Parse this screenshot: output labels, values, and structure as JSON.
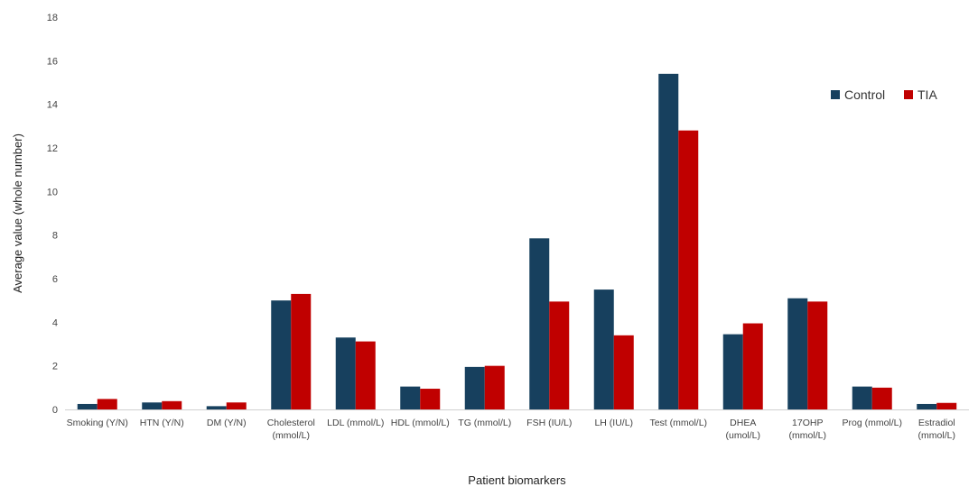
{
  "chart_data": {
    "type": "bar",
    "xlabel": "Patient biomarkers",
    "ylabel": "Average value (whole number)",
    "ylim": [
      0,
      18
    ],
    "yticks": [
      0,
      2,
      4,
      6,
      8,
      10,
      12,
      14,
      16,
      18
    ],
    "grid": false,
    "legend_position": "top-right",
    "categories": [
      [
        "Smoking (Y/N)"
      ],
      [
        "HTN (Y/N)"
      ],
      [
        "DM (Y/N)"
      ],
      [
        "Cholesterol",
        "(mmol/L)"
      ],
      [
        "LDL (mmol/L)"
      ],
      [
        "HDL (mmol/L)"
      ],
      [
        "TG (mmol/L)"
      ],
      [
        "FSH (IU/L)"
      ],
      [
        "LH (IU/L)"
      ],
      [
        "Test (mmol/L)"
      ],
      [
        "DHEA",
        "(umol/L)"
      ],
      [
        "17OHP",
        "(mmol/L)"
      ],
      [
        "Prog (mmol/L)"
      ],
      [
        "Estradiol",
        "(mmol/L)"
      ]
    ],
    "series": [
      {
        "name": "Control",
        "color": "#17405e",
        "values": [
          0.25,
          0.32,
          0.15,
          5.0,
          3.3,
          1.05,
          1.95,
          7.85,
          5.5,
          15.4,
          3.45,
          5.1,
          1.05,
          0.25
        ]
      },
      {
        "name": "TIA",
        "color": "#c00000",
        "values": [
          0.48,
          0.38,
          0.32,
          5.3,
          3.12,
          0.95,
          2.0,
          4.95,
          3.4,
          12.8,
          3.95,
          4.95,
          1.0,
          0.3
        ]
      }
    ]
  }
}
